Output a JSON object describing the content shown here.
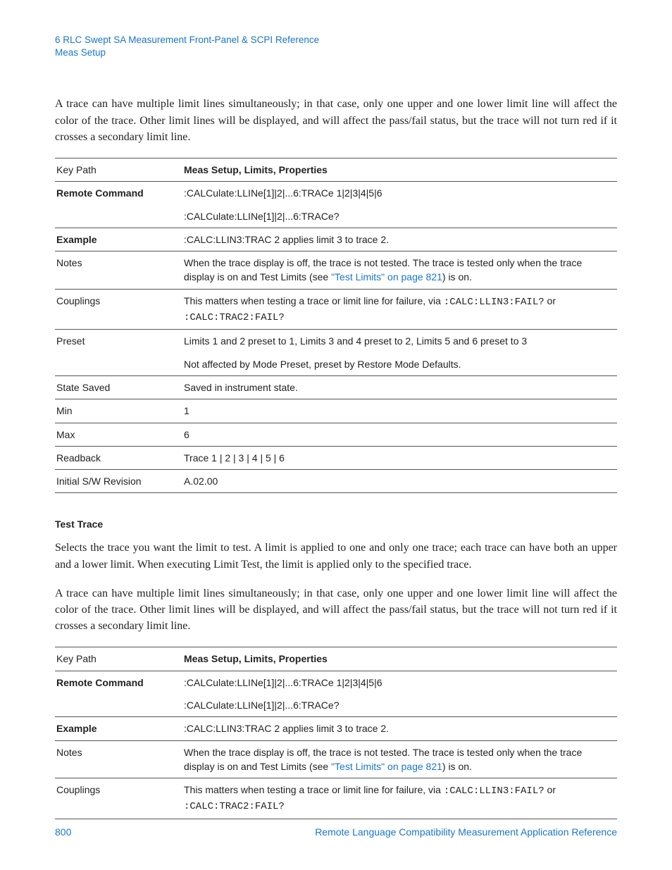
{
  "header": {
    "chapter": "6  RLC Swept SA Measurement Front-Panel & SCPI Reference",
    "section": "Meas Setup"
  },
  "para1": "A trace can have multiple limit lines simultaneously; in that case, only one upper and one lower limit line will affect the color of the trace. Other limit lines will be displayed, and will affect the pass/fail status, but the trace will not turn red if it crosses a secondary limit line.",
  "table1": {
    "keypath_label": "Key Path",
    "keypath_value": "Meas Setup, Limits, Properties",
    "remote_label": "Remote Command",
    "remote_cmd1": ":CALCulate:LLINe[1]|2|...6:TRACe 1|2|3|4|5|6",
    "remote_cmd2": ":CALCulate:LLINe[1]|2|...6:TRACe?",
    "example_label": "Example",
    "example_value": ":CALC:LLIN3:TRAC 2 applies limit 3 to trace 2.",
    "notes_label": "Notes",
    "notes_pre": "When the trace display is off, the trace is not tested. The trace is tested only when the trace display is on and Test Limits (see ",
    "notes_link": "\"Test Limits\" on page 821",
    "notes_post": ") is on.",
    "couplings_label": "Couplings",
    "couplings_pre": "This matters when testing a trace or limit line for failure, via ",
    "couplings_cmd1": ":CALC:LLIN3:FAIL?",
    "couplings_mid": " or ",
    "couplings_cmd2": ":CALC:TRAC2:FAIL?",
    "preset_label": "Preset",
    "preset_value1": "Limits 1 and 2 preset to 1, Limits 3 and 4 preset to 2, Limits 5 and 6 preset to 3",
    "preset_value2": "Not affected by Mode Preset, preset by Restore Mode Defaults.",
    "state_label": "State Saved",
    "state_value": "Saved in instrument state.",
    "min_label": "Min",
    "min_value": "1",
    "max_label": "Max",
    "max_value": "6",
    "readback_label": "Readback",
    "readback_value": "Trace 1 | 2 | 3 | 4 | 5 | 6",
    "rev_label": "Initial S/W Revision",
    "rev_value": "A.02.00"
  },
  "section2_heading": "Test Trace",
  "para2": "Selects the trace you want the limit to test. A limit is applied to one and only one trace; each trace can have both an upper and a lower limit. When executing Limit Test, the limit is applied only to the specified trace.",
  "para3": "A trace can have multiple limit lines simultaneously; in that case, only one upper and one lower limit line will affect the color of the trace. Other limit lines will be displayed, and will affect the pass/fail status, but the trace will not turn red if it crosses a secondary limit line.",
  "footer": {
    "page": "800",
    "title": "Remote Language Compatibility Measurement Application Reference"
  }
}
